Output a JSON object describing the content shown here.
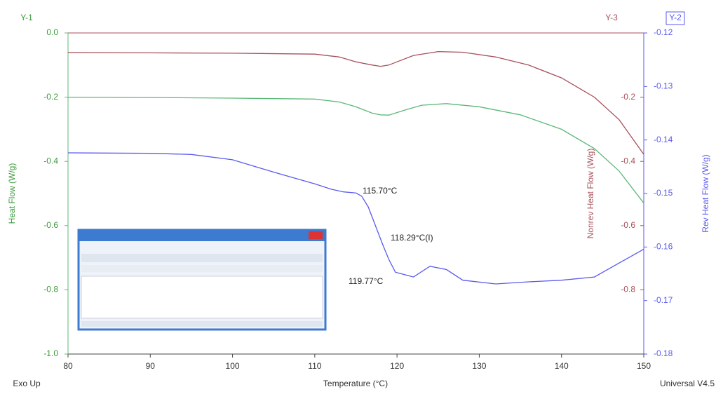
{
  "chart_data": {
    "type": "line",
    "xlabel": "Temperature (°C)",
    "xlim": [
      80,
      150
    ],
    "xticks": [
      80,
      90,
      100,
      110,
      120,
      130,
      140,
      150
    ],
    "y1_name": "Y-1",
    "ylabel": "Heat Flow (W/g)",
    "ylim": [
      -1.0,
      0.0
    ],
    "yticks": [
      {
        "value": 0.0,
        "label": "0.0"
      },
      -0.2,
      -0.4,
      -0.6,
      -0.8,
      {
        "value": -1.0,
        "label": "-1.0"
      }
    ],
    "y3_name": "Y-3",
    "y3label": "Nonrev Heat Flow (W/g)",
    "y3lim": [
      -1.0,
      0.0
    ],
    "y3ticks": [
      -0.2,
      -0.4,
      -0.6,
      -0.8
    ],
    "y2_name": "Y-2",
    "y2label": "Rev Heat Flow (W/g)",
    "y2lim": [
      -0.18,
      -0.12
    ],
    "y2ticks": [
      -0.12,
      -0.13,
      -0.14,
      -0.15,
      -0.16,
      -0.17,
      -0.18
    ],
    "corner_left": "Exo Up",
    "corner_right": "Universal V4.5",
    "annotations": [
      "115.70°C",
      "118.29°C(I)",
      "119.77°C"
    ],
    "series": [
      {
        "color": "#5cb878",
        "axis": "y",
        "x": [
          80,
          90,
          100,
          110,
          113,
          115,
          117,
          118,
          119,
          121,
          123,
          126,
          130,
          135,
          140,
          144,
          147,
          150
        ],
        "values": [
          -0.2,
          -0.201,
          -0.203,
          -0.206,
          -0.215,
          -0.23,
          -0.25,
          -0.255,
          -0.256,
          -0.24,
          -0.225,
          -0.22,
          -0.23,
          -0.255,
          -0.3,
          -0.36,
          -0.43,
          -0.53
        ]
      },
      {
        "color": "#a8505a",
        "axis": "y3",
        "x": [
          80,
          90,
          100,
          110,
          113,
          115,
          117,
          118,
          119,
          120,
          122,
          125,
          128,
          132,
          136,
          140,
          144,
          147,
          150
        ],
        "values": [
          -0.061,
          -0.062,
          -0.063,
          -0.066,
          -0.075,
          -0.09,
          -0.1,
          -0.104,
          -0.1,
          -0.09,
          -0.07,
          -0.058,
          -0.06,
          -0.075,
          -0.1,
          -0.14,
          -0.2,
          -0.27,
          -0.378
        ]
      },
      {
        "color": "#5a5aee",
        "axis": "y2",
        "x": [
          80,
          90,
          95,
          100,
          105,
          110,
          112,
          113.5,
          115,
          115.7,
          116.5,
          117.5,
          118.3,
          119,
          119.8,
          121,
          122,
          124,
          126,
          128,
          132,
          136,
          140,
          144,
          147,
          150
        ],
        "values": [
          -0.1424,
          -0.1425,
          -0.1427,
          -0.1437,
          -0.146,
          -0.1482,
          -0.1492,
          -0.1497,
          -0.1499,
          -0.1505,
          -0.1525,
          -0.1565,
          -0.1597,
          -0.1623,
          -0.1647,
          -0.1652,
          -0.1656,
          -0.1636,
          -0.1642,
          -0.1662,
          -0.1669,
          -0.1665,
          -0.1662,
          -0.1656,
          -0.163,
          -0.1604
        ]
      }
    ]
  }
}
